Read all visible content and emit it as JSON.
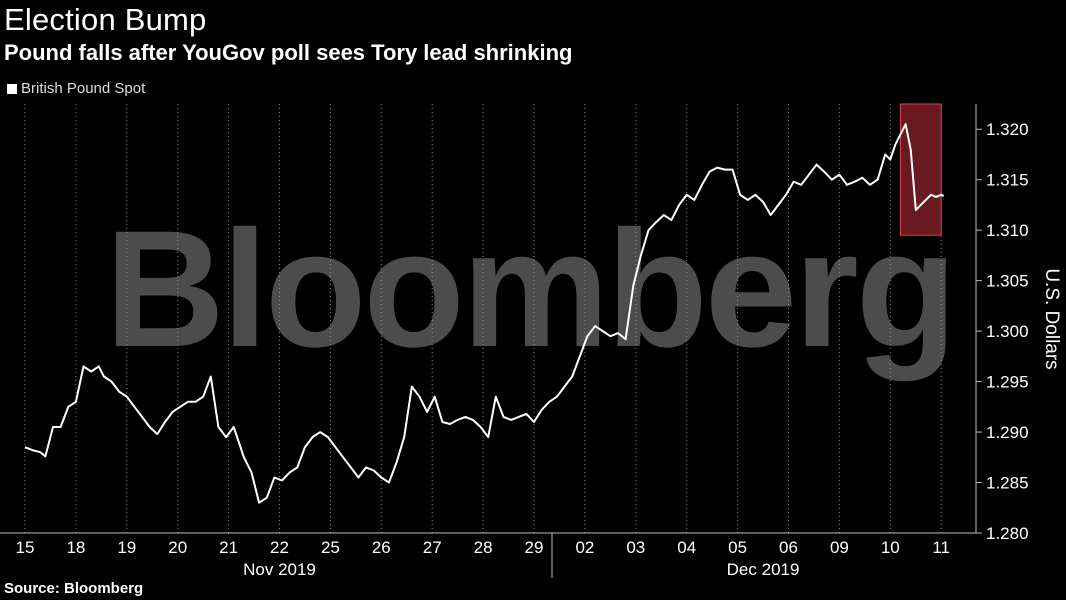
{
  "title": "Election Bump",
  "subtitle": "Pound falls after YouGov poll sees Tory lead shrinking",
  "legend": "British Pound Spot",
  "source": "Source: Bloomberg",
  "watermark": "Bloomberg",
  "colors": {
    "background": "#000000",
    "line": "#ffffff",
    "highlight": "#c0303c",
    "grid": "#8a8a8a"
  },
  "chart_data": {
    "type": "line",
    "title": "Election Bump",
    "subtitle": "Pound falls after YouGov poll sees Tory lead shrinking",
    "ylabel": "U.S. Dollars",
    "ylim": [
      1.28,
      1.3225
    ],
    "yticks": [
      1.28,
      1.285,
      1.29,
      1.295,
      1.3,
      1.305,
      1.31,
      1.315,
      1.32
    ],
    "ytick_labels": [
      "1.280",
      "1.285",
      "1.290",
      "1.295",
      "1.300",
      "1.305",
      "1.310",
      "1.315",
      "1.320"
    ],
    "x_categories": [
      "15",
      "18",
      "19",
      "20",
      "21",
      "22",
      "25",
      "26",
      "27",
      "28",
      "29",
      "02",
      "03",
      "04",
      "05",
      "06",
      "09",
      "10",
      "11"
    ],
    "month_labels": [
      "Nov 2019",
      "Dec 2019"
    ],
    "grid": "vertical dotted",
    "legend_position": "top-left",
    "series": [
      {
        "name": "British Pound Spot",
        "x": [
          0,
          0.15,
          0.3,
          0.4,
          0.55,
          0.7,
          0.85,
          1.0,
          1.15,
          1.3,
          1.45,
          1.55,
          1.7,
          1.85,
          2.0,
          2.15,
          2.3,
          2.45,
          2.6,
          2.75,
          2.9,
          3.05,
          3.2,
          3.35,
          3.5,
          3.65,
          3.8,
          3.95,
          4.1,
          4.2,
          4.3,
          4.45,
          4.6,
          4.75,
          4.9,
          5.05,
          5.2,
          5.35,
          5.5,
          5.65,
          5.8,
          5.95,
          6.1,
          6.25,
          6.4,
          6.55,
          6.7,
          6.85,
          7.0,
          7.15,
          7.3,
          7.45,
          7.6,
          7.75,
          7.9,
          8.05,
          8.2,
          8.35,
          8.5,
          8.65,
          8.8,
          8.95,
          9.1,
          9.25,
          9.4,
          9.55,
          9.7,
          9.85,
          10.0,
          10.15,
          10.3,
          10.45,
          10.6,
          10.75,
          10.9,
          11.05,
          11.2,
          11.35,
          11.5,
          11.65,
          11.8,
          11.95,
          12.1,
          12.25,
          12.4,
          12.55,
          12.7,
          12.85,
          13.0,
          13.15,
          13.3,
          13.45,
          13.6,
          13.75,
          13.9,
          14.05,
          14.2,
          14.35,
          14.5,
          14.65,
          14.8,
          14.95,
          15.1,
          15.25,
          15.4,
          15.55,
          15.7,
          15.85,
          16.0,
          16.15,
          16.3,
          16.45,
          16.6,
          16.75,
          16.9,
          17.0,
          17.1,
          17.2,
          17.3,
          17.4,
          17.5,
          17.6,
          17.7,
          17.8,
          17.9,
          18.0,
          18.05
        ],
        "values": [
          1.2885,
          1.2882,
          1.288,
          1.2876,
          1.2905,
          1.2905,
          1.2925,
          1.293,
          1.2965,
          1.296,
          1.2965,
          1.2955,
          1.295,
          1.294,
          1.2935,
          1.2925,
          1.2915,
          1.2905,
          1.2898,
          1.291,
          1.292,
          1.2925,
          1.293,
          1.293,
          1.2935,
          1.2955,
          1.2905,
          1.2895,
          1.2905,
          1.289,
          1.2875,
          1.286,
          1.283,
          1.2835,
          1.2855,
          1.2852,
          1.286,
          1.2865,
          1.2885,
          1.2895,
          1.29,
          1.2895,
          1.2885,
          1.2875,
          1.2865,
          1.2855,
          1.2865,
          1.2862,
          1.2855,
          1.285,
          1.287,
          1.2895,
          1.2945,
          1.2935,
          1.292,
          1.2935,
          1.291,
          1.2908,
          1.2912,
          1.2915,
          1.2912,
          1.2905,
          1.2895,
          1.2935,
          1.2915,
          1.2912,
          1.2915,
          1.2918,
          1.291,
          1.2922,
          1.293,
          1.2935,
          1.2945,
          1.2955,
          1.2975,
          1.2995,
          1.3005,
          1.3,
          1.2995,
          1.2998,
          1.2992,
          1.3045,
          1.3075,
          1.31,
          1.3108,
          1.3115,
          1.311,
          1.3125,
          1.3135,
          1.313,
          1.3145,
          1.3158,
          1.3162,
          1.316,
          1.316,
          1.3135,
          1.313,
          1.3135,
          1.3128,
          1.3115,
          1.3125,
          1.3135,
          1.3148,
          1.3145,
          1.3155,
          1.3165,
          1.3158,
          1.315,
          1.3155,
          1.3145,
          1.3148,
          1.3152,
          1.3145,
          1.315,
          1.3175,
          1.317,
          1.3185,
          1.3195,
          1.3205,
          1.318,
          1.312,
          1.3125,
          1.313,
          1.3135,
          1.3133,
          1.3135,
          1.3134
        ]
      }
    ],
    "annotations": [
      {
        "type": "highlight-box",
        "x_range": [
          17.2,
          18.0
        ],
        "y_range": [
          1.3095,
          1.3225
        ]
      }
    ]
  }
}
